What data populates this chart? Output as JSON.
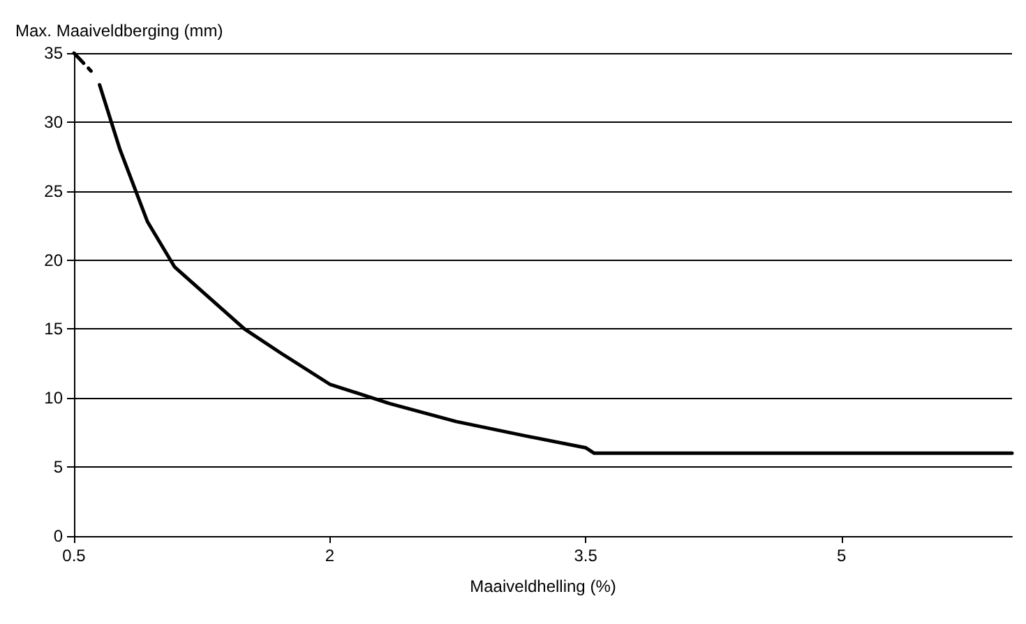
{
  "chart_data": {
    "type": "line",
    "xlabel": "Maaiveldhelling (%)",
    "ylabel": "Max. Maaiveldberging (mm)",
    "xlim": [
      0.5,
      6
    ],
    "xticks": [
      0.5,
      2,
      3.5,
      5
    ],
    "ylim": [
      0,
      35
    ],
    "yticks": [
      0,
      5,
      10,
      15,
      20,
      25,
      30,
      35
    ],
    "grid": "y",
    "marker": "none",
    "series": [
      {
        "color": "#000000",
        "line_style": "dashed",
        "x": [
          0.5,
          0.6
        ],
        "values": [
          35,
          33.7
        ]
      },
      {
        "color": "#000000",
        "line_style": "solid",
        "x": [
          0.65,
          0.77,
          0.93,
          1.09,
          1.5,
          1.72,
          2,
          2.35,
          2.74,
          3.13,
          3.5,
          3.55,
          6
        ],
        "values": [
          32.7,
          28,
          22.8,
          19.5,
          15,
          13.2,
          11,
          9.6,
          8.3,
          7.3,
          6.4,
          6,
          6
        ]
      }
    ]
  }
}
